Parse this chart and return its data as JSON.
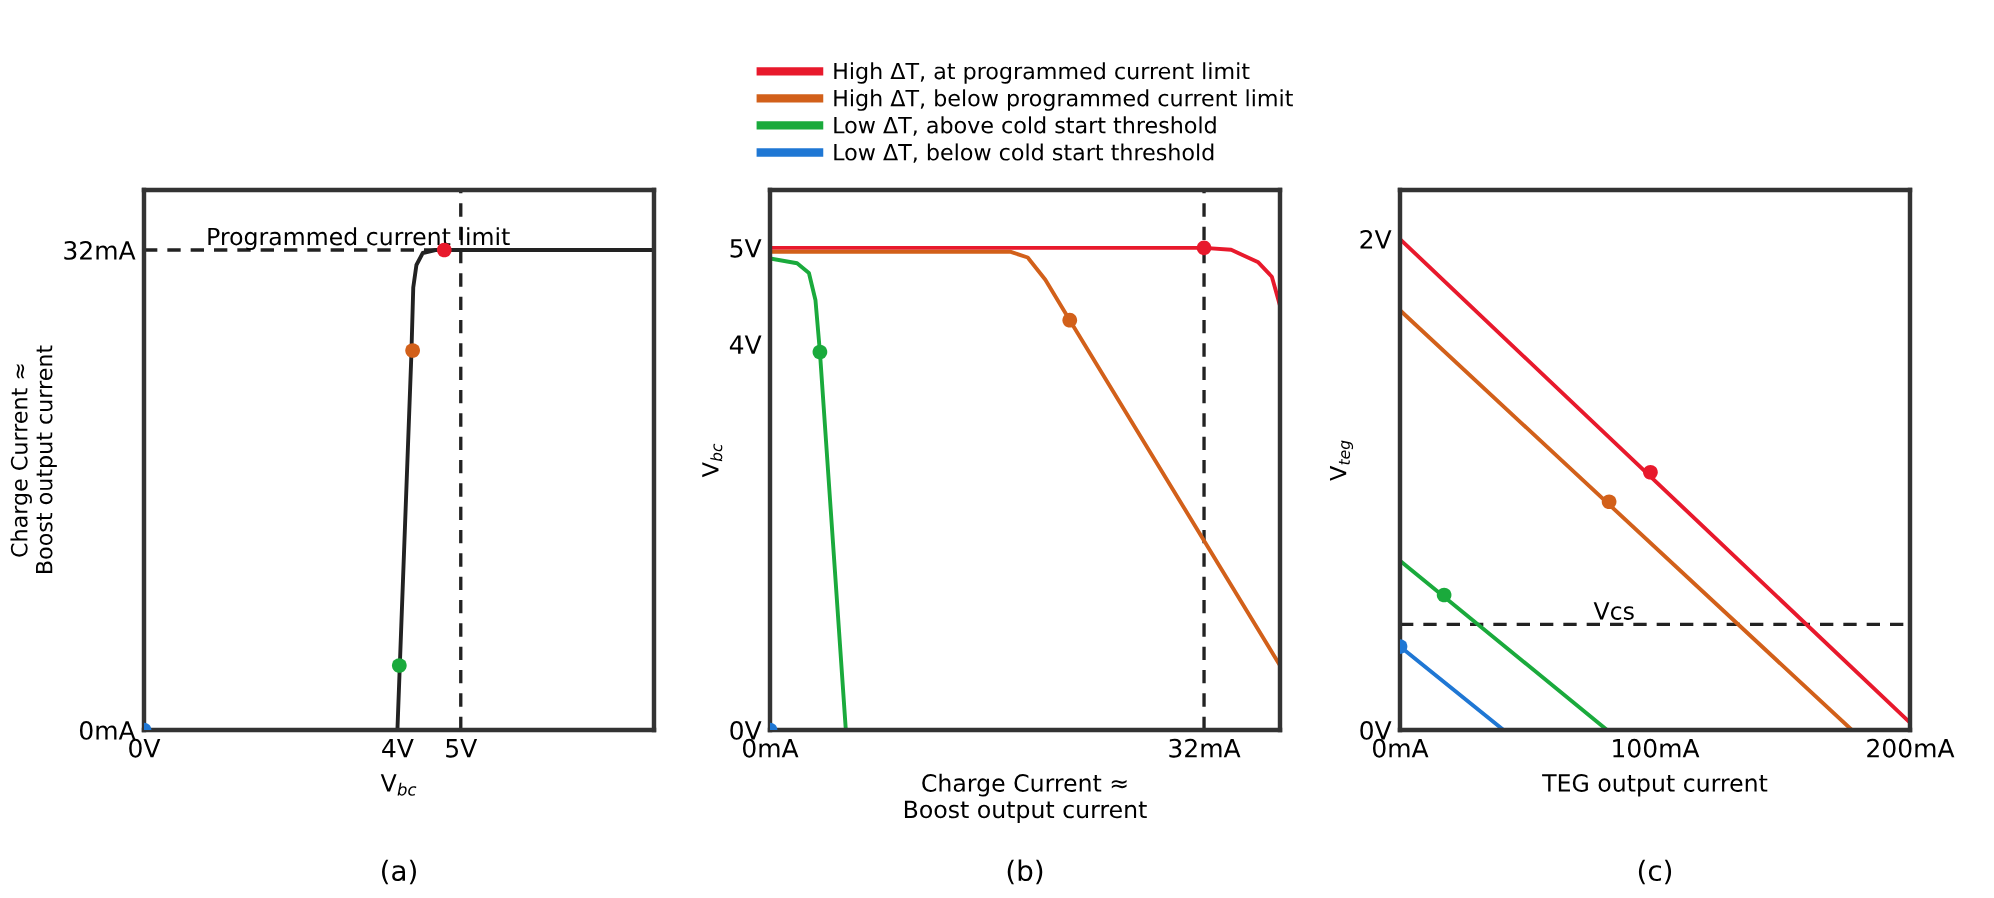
{
  "chart_data": [
    {
      "type": "line",
      "title": "(a)",
      "xlabel": "V$_{bc}$",
      "ylabel": "Charge Current ≈\nBoost output current",
      "xlim": [
        0,
        8.05
      ],
      "ylim": [
        0,
        36
      ],
      "xticks": [
        {
          "value": 0,
          "label": "0V"
        },
        {
          "value": 4,
          "label": "4V"
        },
        {
          "value": 5,
          "label": "5V"
        }
      ],
      "yticks": [
        {
          "value": 0,
          "label": "0mA"
        },
        {
          "value": 32,
          "label": "32mA"
        }
      ],
      "grid": false,
      "series": [
        {
          "color": "#222222",
          "x": [
            4.0,
            4.22,
            4.25,
            4.3,
            4.4,
            4.6,
            4.74,
            8.05
          ],
          "values": [
            0,
            25,
            29.5,
            31,
            31.8,
            32,
            32,
            32
          ]
        },
        {
          "type": "scatter",
          "marker": "circle",
          "x": [
            0,
            4.03,
            4.24,
            4.74
          ],
          "values": [
            0,
            4.3,
            25.3,
            32
          ],
          "colors": [
            "#1f77d4",
            "#1aaa3c",
            "#d2601a",
            "#e8192c"
          ]
        }
      ],
      "ref_lines": [
        {
          "axis": "y",
          "value": 32,
          "label": "Programmed current limit",
          "color": "#222222",
          "line_style": "dashed"
        },
        {
          "axis": "x",
          "value": 5,
          "color": "#222222",
          "line_style": "dashed"
        }
      ]
    },
    {
      "type": "line",
      "title": "(b)",
      "xlabel": "Charge Current ≈\nBoost output current",
      "ylabel": "V$_{bc}$",
      "xlim": [
        0,
        37.6
      ],
      "ylim": [
        0,
        5.6
      ],
      "xticks": [
        {
          "value": 0,
          "label": "0mA"
        },
        {
          "value": 32,
          "label": "32mA"
        }
      ],
      "yticks": [
        {
          "value": 0,
          "label": "0V"
        },
        {
          "value": 4,
          "label": "4V"
        },
        {
          "value": 5,
          "label": "5V"
        }
      ],
      "grid": false,
      "legend": "top",
      "series": [
        {
          "name": "High ΔT, at programmed current limit",
          "color": "#e8192c",
          "x": [
            0,
            32,
            34,
            36,
            37,
            37.6
          ],
          "values": [
            5.0,
            5.0,
            4.98,
            4.85,
            4.7,
            4.4
          ]
        },
        {
          "name": "High ΔT, below programmed current limit",
          "color": "#d2601a",
          "x": [
            0,
            17.7,
            19.0,
            20.3,
            22.1,
            37.6
          ],
          "values": [
            4.96,
            4.96,
            4.9,
            4.67,
            4.25,
            0.67
          ]
        },
        {
          "name": "Low ΔT, above cold start threshold",
          "color": "#1aaa3c",
          "x": [
            0,
            2.0,
            2.87,
            3.35,
            3.68,
            5.59
          ],
          "values": [
            4.89,
            4.84,
            4.74,
            4.46,
            3.92,
            0
          ]
        },
        {
          "name": "Low ΔT, below cold start threshold",
          "type": "scatter",
          "marker": "circle",
          "color": "#1f77d4",
          "x": [
            0
          ],
          "values": [
            0
          ]
        },
        {
          "type": "scatter",
          "marker": "circle",
          "x": [
            3.68,
            22.1,
            32
          ],
          "values": [
            3.92,
            4.25,
            5.0
          ],
          "colors": [
            "#1aaa3c",
            "#d2601a",
            "#e8192c"
          ]
        }
      ],
      "ref_lines": [
        {
          "axis": "x",
          "value": 32,
          "color": "#222222",
          "line_style": "dashed"
        }
      ]
    },
    {
      "type": "line",
      "title": "(c)",
      "xlabel": "TEG output current",
      "ylabel": "V$_{teg}$",
      "xlim": [
        0,
        200
      ],
      "ylim": [
        0,
        2.2
      ],
      "xticks": [
        {
          "value": 0,
          "label": "0mA"
        },
        {
          "value": 100,
          "label": "100mA"
        },
        {
          "value": 200,
          "label": "200mA"
        }
      ],
      "yticks": [
        {
          "value": 0,
          "label": "0V"
        },
        {
          "value": 2,
          "label": "2V"
        }
      ],
      "grid": false,
      "series": [
        {
          "color": "#e8192c",
          "x": [
            0,
            200
          ],
          "values": [
            2.0,
            0.03
          ]
        },
        {
          "color": "#d2601a",
          "x": [
            0,
            177.2
          ],
          "values": [
            1.71,
            0
          ]
        },
        {
          "color": "#1aaa3c",
          "x": [
            0,
            81.2
          ],
          "values": [
            0.69,
            0
          ]
        },
        {
          "color": "#1f77d4",
          "x": [
            0,
            40.6
          ],
          "values": [
            0.34,
            0
          ]
        },
        {
          "type": "scatter",
          "marker": "circle",
          "x": [
            0,
            17.3,
            82.0,
            98.2
          ],
          "values": [
            0.34,
            0.55,
            0.93,
            1.05
          ],
          "colors": [
            "#1f77d4",
            "#1aaa3c",
            "#d2601a",
            "#e8192c"
          ]
        }
      ],
      "ref_lines": [
        {
          "axis": "y",
          "value": 0.43,
          "label": "Vcs",
          "color": "#222222",
          "line_style": "dashed"
        }
      ]
    }
  ]
}
